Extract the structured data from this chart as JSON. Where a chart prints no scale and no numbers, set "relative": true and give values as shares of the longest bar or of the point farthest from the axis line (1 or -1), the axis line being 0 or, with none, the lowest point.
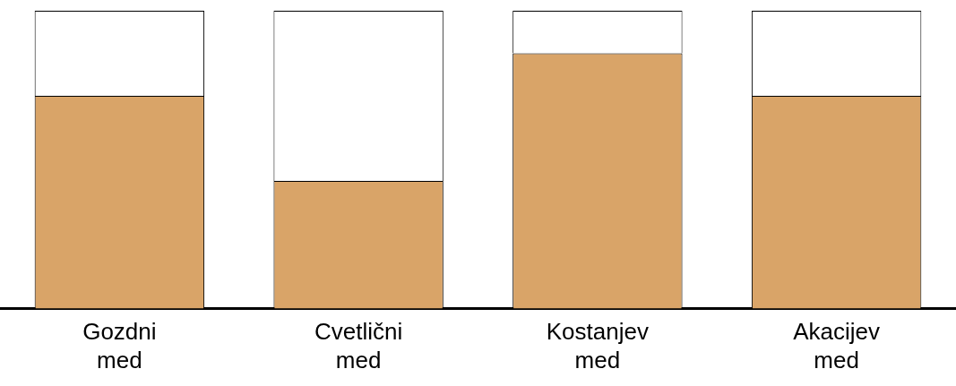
{
  "chart_data": {
    "type": "bar",
    "relative": true,
    "stacked": true,
    "categories": [
      "Gozdni med",
      "Cvetlični med",
      "Kostanjev med",
      "Akacijev med"
    ],
    "series": [
      {
        "color": "#d9a468",
        "values": [
          0.714,
          0.429,
          0.857,
          0.714
        ]
      },
      {
        "color": "#ffffff",
        "values": [
          0.286,
          0.571,
          0.143,
          0.286
        ]
      }
    ],
    "grid": false,
    "legend": false
  }
}
